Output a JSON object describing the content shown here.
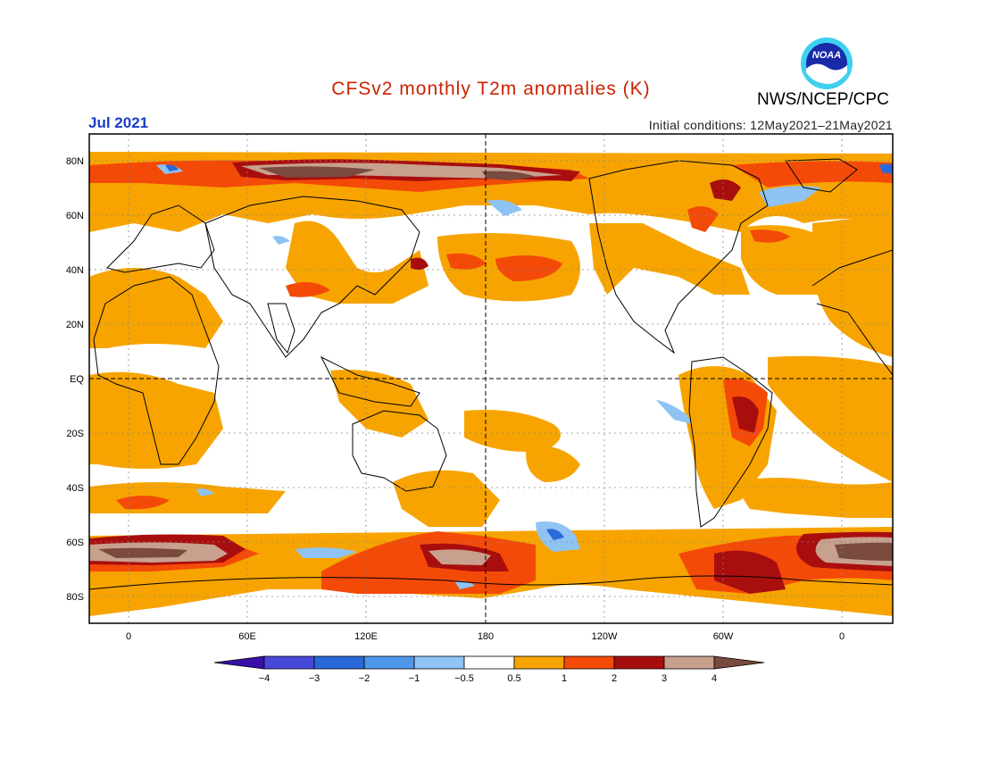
{
  "title": "CFSv2 monthly T2m anomalies (K)",
  "title_color": "#cc2200",
  "month": "Jul 2021",
  "month_color": "#1a3ecc",
  "initial_conditions": "Initial conditions: 12May2021–21May2021",
  "organization": "NWS/NCEP/CPC",
  "logo": {
    "text": "NOAA",
    "name": "noaa-logo"
  },
  "lat_labels": [
    "80N",
    "60N",
    "40N",
    "20N",
    "EQ",
    "20S",
    "40S",
    "60S",
    "80S"
  ],
  "lon_labels": [
    "0",
    "60E",
    "120E",
    "180",
    "120W",
    "60W",
    "0"
  ],
  "colorbar": {
    "labels": [
      "−4",
      "−3",
      "−2",
      "−1",
      "−0.5",
      "0.5",
      "1",
      "2",
      "3",
      "4"
    ],
    "colors": [
      "#3a0fa8",
      "#4848d8",
      "#2a6ad8",
      "#4f97ea",
      "#8ec3f4",
      "#ffffff",
      "#f7a400",
      "#f44a08",
      "#a90e0e",
      "#c8a08e",
      "#7a4a3e"
    ]
  }
}
